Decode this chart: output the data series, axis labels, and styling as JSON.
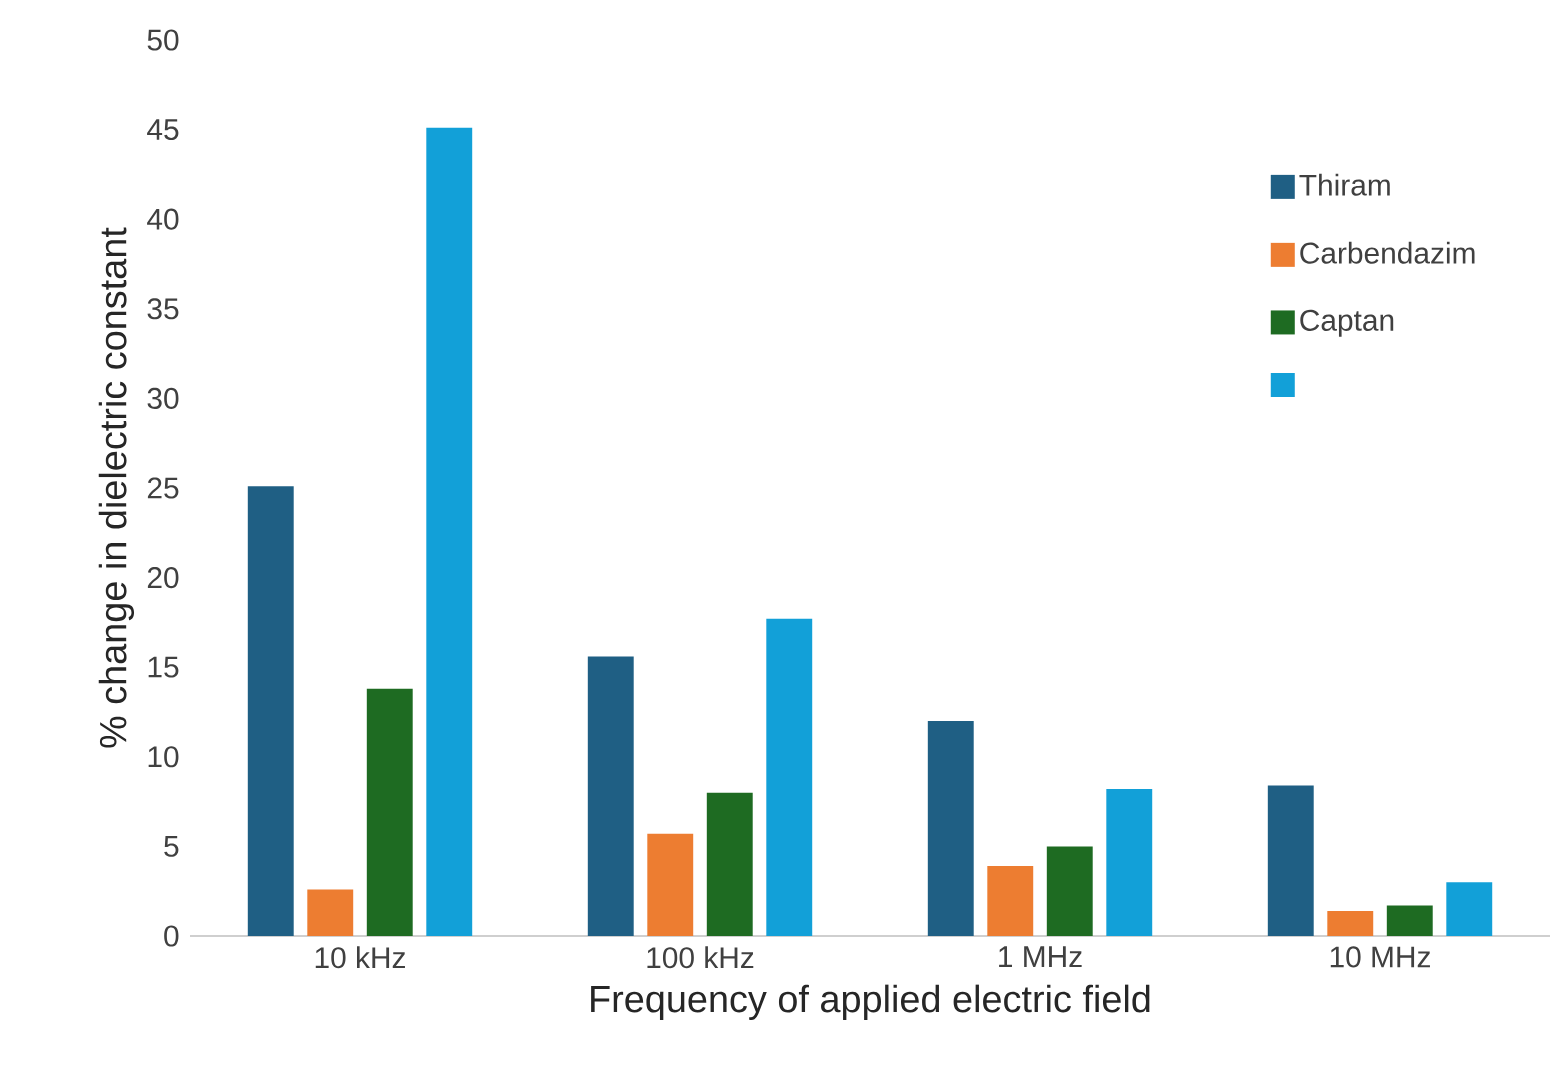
{
  "chart_data": {
    "type": "bar",
    "xlabel": "Frequency of applied electric field",
    "ylabel": "% change in dielectric constant",
    "categories": [
      "10 kHz",
      "100 kHz",
      "1 MHz",
      "10 MHz"
    ],
    "series": [
      {
        "name": "Thiram",
        "color": "#1f5f84",
        "values": [
          25.1,
          15.6,
          12,
          8.4
        ]
      },
      {
        "name": "Carbendazim",
        "color": "#ed7d31",
        "values": [
          2.6,
          5.7,
          3.9,
          1.4
        ]
      },
      {
        "name": "Captan",
        "color": "#1e6b22",
        "values": [
          13.8,
          8,
          5,
          1.7
        ]
      },
      {
        "color": "#12a0d8",
        "values": [
          45.1,
          17.7,
          8.2,
          3.0
        ]
      }
    ],
    "ylim": [
      0,
      50
    ],
    "yticks": [
      0,
      5,
      10,
      15,
      20,
      25,
      30,
      35,
      40,
      45,
      50
    ],
    "grid": false,
    "legend": "right"
  }
}
